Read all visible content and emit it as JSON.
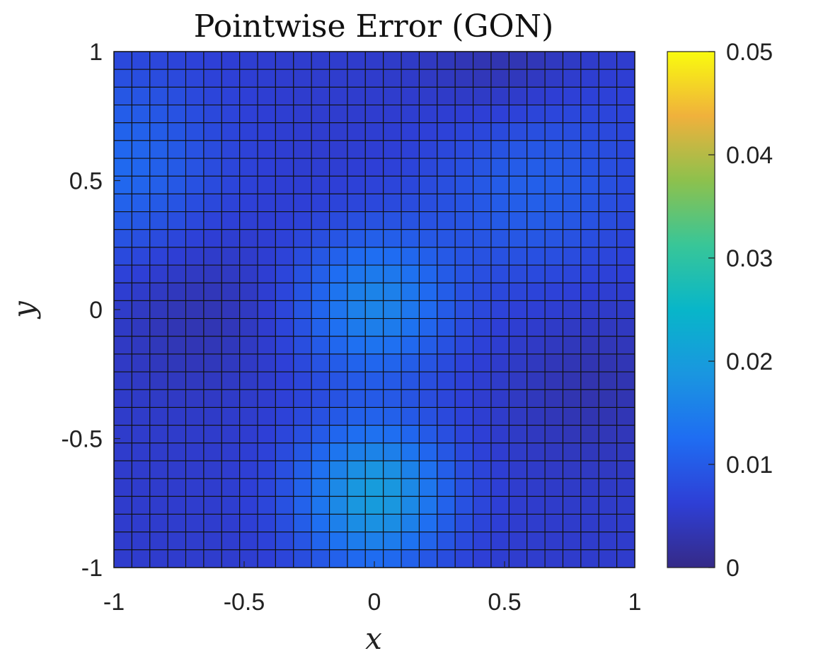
{
  "chart_data": {
    "type": "heatmap",
    "title": "Pointwise Error (GON)",
    "xlabel": "x",
    "ylabel": "y",
    "xlim": [
      -1,
      1
    ],
    "ylim": [
      -1,
      1
    ],
    "x_ticks": [
      "-1",
      "-0.5",
      "0",
      "0.5",
      "1"
    ],
    "y_ticks": [
      "-1",
      "-0.5",
      "0",
      "0.5",
      "1"
    ],
    "grid_size": [
      29,
      29
    ],
    "colorbar": {
      "range": [
        0,
        0.05
      ],
      "ticks": [
        "0",
        "0.01",
        "0.02",
        "0.03",
        "0.04",
        "0.05"
      ],
      "colormap": "parula"
    },
    "grid_on": true,
    "approximate_error_features": [
      {
        "description": "peak",
        "x": 0.0,
        "y": -0.72,
        "value": 0.02
      },
      {
        "description": "peak",
        "x": 0.0,
        "y": 0.02,
        "value": 0.016
      },
      {
        "description": "ridge",
        "x": -1.0,
        "y": 0.55,
        "value": 0.012
      },
      {
        "description": "ridge",
        "x": 0.6,
        "y": 0.5,
        "value": 0.011
      },
      {
        "description": "minimum",
        "x": -0.7,
        "y": 0.0,
        "value": 0.003
      },
      {
        "description": "minimum",
        "x": 0.85,
        "y": -0.3,
        "value": 0.003
      },
      {
        "description": "minimum",
        "x": 0.5,
        "y": 0.95,
        "value": 0.002
      }
    ]
  }
}
